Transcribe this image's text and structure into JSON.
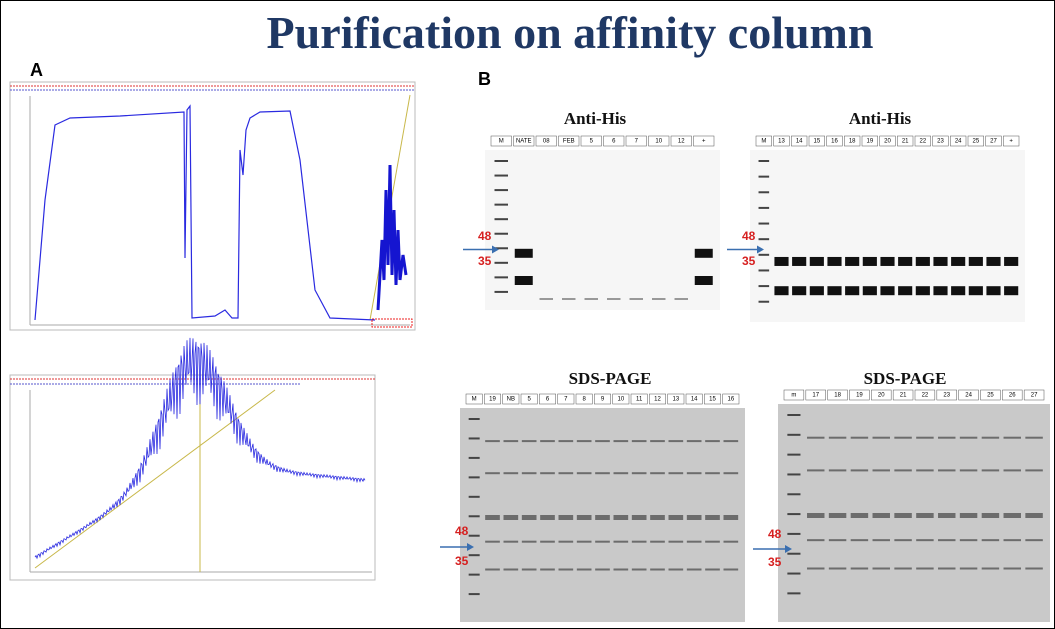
{
  "title": "Purification on affinity column",
  "panel_a": {
    "label": "A"
  },
  "panel_b": {
    "label": "B",
    "blots": [
      {
        "title": "Anti-His",
        "lanes": [
          "M",
          "NATE",
          "08",
          "FEB",
          "5",
          "6",
          "7",
          "10",
          "12",
          "+"
        ],
        "markers": [
          "48",
          "35"
        ]
      },
      {
        "title": "Anti-His",
        "lanes": [
          "M",
          "13",
          "14",
          "15",
          "16",
          "18",
          "19",
          "20",
          "21",
          "22",
          "23",
          "24",
          "25",
          "27",
          "+"
        ],
        "markers": [
          "48",
          "35"
        ]
      },
      {
        "title": "SDS-PAGE",
        "lanes": [
          "M",
          "19",
          "NB",
          "5",
          "6",
          "7",
          "8",
          "9",
          "10",
          "11",
          "12",
          "13",
          "14",
          "15",
          "16"
        ],
        "markers": [
          "48",
          "35"
        ]
      },
      {
        "title": "SDS-PAGE",
        "lanes": [
          "m",
          "17",
          "18",
          "19",
          "20",
          "21",
          "22",
          "23",
          "24",
          "25",
          "26",
          "27"
        ],
        "markers": [
          "48",
          "35"
        ]
      }
    ]
  }
}
